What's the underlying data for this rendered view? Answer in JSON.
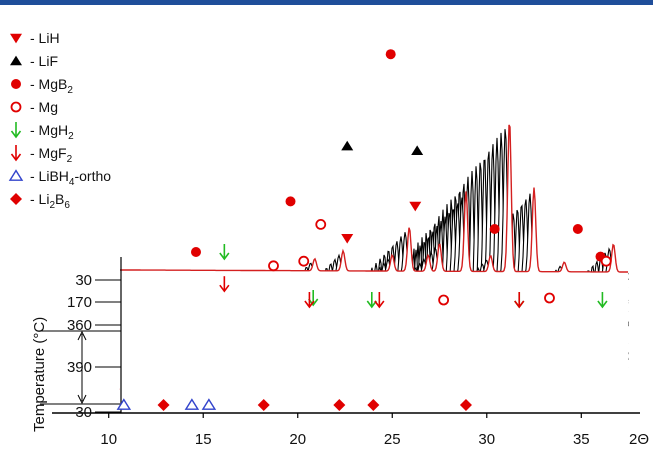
{
  "chart_data": {
    "type": "line",
    "subtype": "stacked-waterfall-xrd",
    "xlabel": "2Θ",
    "ylabel": "Temperature (°C)",
    "xlim": [
      7,
      38
    ],
    "xticks": [
      10,
      15,
      20,
      25,
      30,
      35
    ],
    "temperature_ticks": [
      "30",
      "170",
      "360",
      "390",
      "30"
    ],
    "legend": [
      {
        "id": "lih",
        "label": "- LiH",
        "marker": "triangle-down-filled",
        "color": "#e00000"
      },
      {
        "id": "lif",
        "label": "- LiF",
        "marker": "triangle-up-filled",
        "color": "#000000"
      },
      {
        "id": "mgb2",
        "label": "- MgB",
        "sub": "2",
        "marker": "circle-filled",
        "color": "#e00000"
      },
      {
        "id": "mg",
        "label": "- Mg",
        "marker": "circle-open",
        "color": "#e00000"
      },
      {
        "id": "mgh2",
        "label": "- MgH",
        "sub": "2",
        "marker": "arrow-down",
        "color": "#22bb22"
      },
      {
        "id": "mgf2",
        "label": "- MgF",
        "sub": "2",
        "marker": "arrow-down",
        "color": "#e00000"
      },
      {
        "id": "libh4",
        "label": "- LiBH",
        "sub": "4",
        "suffix": "-ortho",
        "marker": "triangle-up-open",
        "color": "#3344cc"
      },
      {
        "id": "li2b6",
        "label": "- Li",
        "sub": "2",
        "mid": "B",
        "sub2": "6",
        "marker": "diamond-filled",
        "color": "#e00000"
      }
    ],
    "peaks": [
      {
        "x": 14.3,
        "h": 0.15
      },
      {
        "x": 15.8,
        "h": 0.25
      },
      {
        "x": 18.4,
        "h": 0.2
      },
      {
        "x": 19.3,
        "h": 0.55
      },
      {
        "x": 20.3,
        "h": 0.2
      },
      {
        "x": 20.9,
        "h": 0.35
      },
      {
        "x": 22.3,
        "h": 1.0
      },
      {
        "x": 23.6,
        "h": 0.2
      },
      {
        "x": 24.6,
        "h": 1.9
      },
      {
        "x": 25.9,
        "h": 1.05
      },
      {
        "x": 27.5,
        "h": 0.12
      },
      {
        "x": 30.1,
        "h": 0.35
      },
      {
        "x": 31.4,
        "h": 0.15
      },
      {
        "x": 32.8,
        "h": 0.12
      },
      {
        "x": 34.5,
        "h": 0.45
      },
      {
        "x": 35.8,
        "h": 0.2
      }
    ],
    "top_markers": [
      {
        "phase": "mgb2",
        "x": 14.3,
        "level": 0.0
      },
      {
        "phase": "mgh2",
        "x": 15.8,
        "level": 0.0
      },
      {
        "phase": "mgf2",
        "x": 15.8,
        "level": -0.35
      },
      {
        "phase": "mg",
        "x": 18.4,
        "level": -0.15
      },
      {
        "phase": "mgb2",
        "x": 19.3,
        "level": 0.55
      },
      {
        "phase": "mg",
        "x": 20.0,
        "level": -0.1
      },
      {
        "phase": "mgh2",
        "x": 20.5,
        "level": -0.5
      },
      {
        "phase": "mgf2",
        "x": 20.3,
        "level": -0.95
      },
      {
        "phase": "mg",
        "x": 20.9,
        "level": 0.3
      },
      {
        "phase": "lih",
        "x": 22.3,
        "level": 0.15
      },
      {
        "phase": "lif",
        "x": 22.3,
        "level": 1.15
      },
      {
        "phase": "mgh2",
        "x": 23.6,
        "level": -0.95
      },
      {
        "phase": "mgf2",
        "x": 24.0,
        "level": -0.65
      },
      {
        "phase": "mgb2",
        "x": 24.6,
        "level": 2.15
      },
      {
        "phase": "lif",
        "x": 26.0,
        "level": 1.1
      },
      {
        "phase": "lih",
        "x": 25.9,
        "level": 0.5
      },
      {
        "phase": "mg",
        "x": 27.4,
        "level": -0.55
      },
      {
        "phase": "mgb2",
        "x": 30.1,
        "level": 0.25
      },
      {
        "phase": "mgh2",
        "x": 31.4,
        "level": -0.65
      },
      {
        "phase": "mgf2",
        "x": 31.4,
        "level": -0.9
      },
      {
        "phase": "mg",
        "x": 33.0,
        "level": -0.5
      },
      {
        "phase": "mgb2",
        "x": 34.5,
        "level": 0.25
      },
      {
        "phase": "mgb2",
        "x": 35.7,
        "level": -0.05
      },
      {
        "phase": "mg",
        "x": 36.0,
        "level": -0.1
      },
      {
        "phase": "mgh2",
        "x": 35.8,
        "level": -0.75
      }
    ],
    "bottom_peaks": [
      {
        "x": 10.8,
        "h": 0.12
      },
      {
        "x": 12.6,
        "h": 0.25
      },
      {
        "x": 14.4,
        "h": 0.12
      },
      {
        "x": 15.2,
        "h": 0.1
      },
      {
        "x": 18.2,
        "h": 0.08
      },
      {
        "x": 22.0,
        "h": 0.35
      },
      {
        "x": 23.2,
        "h": 0.5
      },
      {
        "x": 24.1,
        "h": 0.25
      },
      {
        "x": 25.4,
        "h": 0.45
      },
      {
        "x": 26.7,
        "h": 0.35
      },
      {
        "x": 29.0,
        "h": 0.2
      },
      {
        "x": 31.0,
        "h": 0.15
      }
    ],
    "bottom_markers": [
      {
        "phase": "libh4",
        "x": 10.8
      },
      {
        "phase": "li2b6",
        "x": 12.9
      },
      {
        "phase": "libh4",
        "x": 14.4
      },
      {
        "phase": "libh4",
        "x": 15.3
      },
      {
        "phase": "li2b6",
        "x": 18.2
      },
      {
        "phase": "li2b6",
        "x": 22.2
      },
      {
        "phase": "li2b6",
        "x": 24.0
      },
      {
        "phase": "li2b6",
        "x": 28.9
      }
    ]
  }
}
